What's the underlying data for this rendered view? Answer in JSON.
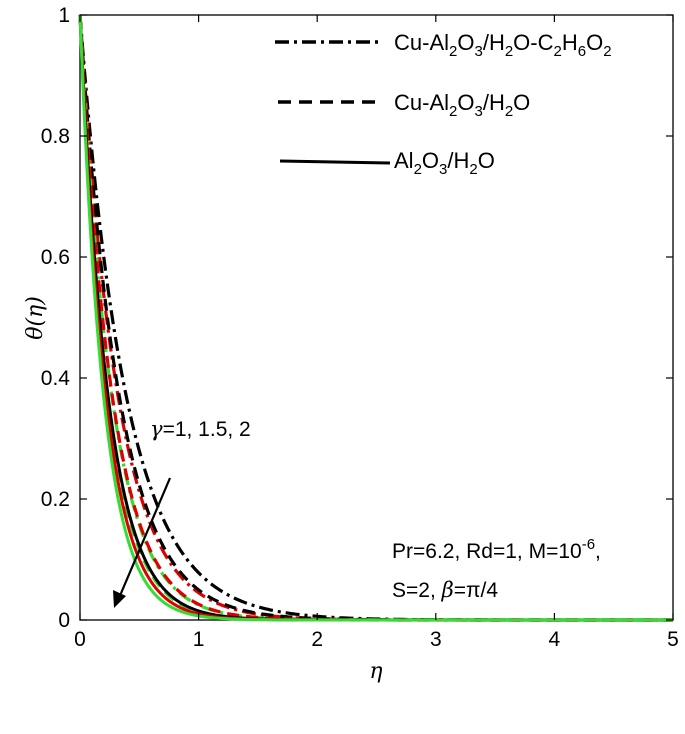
{
  "chart_data": {
    "type": "line",
    "xlabel": "η",
    "ylabel": "θ(η)",
    "xlim": [
      0,
      5
    ],
    "ylim": [
      0,
      1
    ],
    "xticks": [
      "0",
      "1",
      "2",
      "3",
      "4",
      "5"
    ],
    "yticks": [
      "0",
      "0.2",
      "0.4",
      "0.6",
      "0.8",
      "1"
    ],
    "grid": false,
    "legend_position": "top-right",
    "legend": [
      {
        "name": "Cu-Al2O3/H2O-C2H6O2",
        "style": "dash-dot",
        "color": "#000000"
      },
      {
        "name": "Cu-Al2O3/H2O",
        "style": "dashed",
        "color": "#000000"
      },
      {
        "name": "Al2O3/H2O",
        "style": "solid",
        "color": "#000000"
      }
    ],
    "annotation_gamma": {
      "greek": "γ",
      "values": "=1, 1.5, 2"
    },
    "annotation_params": {
      "line1": "Pr=6.2, Rd=1, M=10",
      "line1_exp": "-6",
      "line1_tail": ",",
      "line2_prefix": "S=2, ",
      "line2_greek": "β",
      "line2_suffix": "=π/4"
    },
    "series": [
      {
        "fluid": "Cu-Al2O3/H2O-C2H6O2",
        "gamma": 1,
        "color": "#000000",
        "style": "dash-dot",
        "decay": 2.55,
        "x": [
          0,
          0.25,
          0.5,
          0.75,
          1,
          1.5,
          2,
          3,
          4,
          5
        ],
        "y": [
          1,
          0.529,
          0.279,
          0.148,
          0.078,
          0.022,
          0.006,
          0.0005,
          0,
          0
        ]
      },
      {
        "fluid": "Cu-Al2O3/H2O-C2H6O2",
        "gamma": 1.5,
        "color": "#dc0000",
        "style": "dash-dot",
        "decay": 3.1,
        "x": [
          0,
          0.25,
          0.5,
          0.75,
          1,
          1.5,
          2,
          3,
          4,
          5
        ],
        "y": [
          1,
          0.461,
          0.212,
          0.098,
          0.045,
          0.01,
          0.002,
          0.0001,
          0,
          0
        ]
      },
      {
        "fluid": "Cu-Al2O3/H2O-C2H6O2",
        "gamma": 2,
        "color": "#33dd33",
        "style": "dash-dot",
        "decay": 3.7,
        "x": [
          0,
          0.25,
          0.5,
          0.75,
          1,
          1.5,
          2,
          3,
          4,
          5
        ],
        "y": [
          1,
          0.397,
          0.157,
          0.062,
          0.025,
          0.004,
          0.0006,
          0,
          0,
          0
        ]
      },
      {
        "fluid": "Cu-Al2O3/H2O",
        "gamma": 1,
        "color": "#000000",
        "style": "dashed",
        "decay": 3.0,
        "x": [
          0,
          0.25,
          0.5,
          0.75,
          1,
          1.5,
          2,
          3,
          4,
          5
        ],
        "y": [
          1,
          0.472,
          0.223,
          0.105,
          0.05,
          0.011,
          0.002,
          0.0001,
          0,
          0
        ]
      },
      {
        "fluid": "Cu-Al2O3/H2O",
        "gamma": 1.5,
        "color": "#dc0000",
        "style": "dashed",
        "decay": 3.65,
        "x": [
          0,
          0.25,
          0.5,
          0.75,
          1,
          1.5,
          2,
          3,
          4,
          5
        ],
        "y": [
          1,
          0.401,
          0.161,
          0.065,
          0.026,
          0.004,
          0.0007,
          0,
          0,
          0
        ]
      },
      {
        "fluid": "Cu-Al2O3/H2O",
        "gamma": 2,
        "color": "#33dd33",
        "style": "dashed",
        "decay": 4.3,
        "x": [
          0,
          0.25,
          0.5,
          0.75,
          1,
          1.5,
          2,
          3,
          4,
          5
        ],
        "y": [
          1,
          0.341,
          0.116,
          0.04,
          0.014,
          0.002,
          0.0002,
          0,
          0,
          0
        ]
      },
      {
        "fluid": "Al2O3/H2O",
        "gamma": 1,
        "color": "#000000",
        "style": "solid",
        "decay": 4.2,
        "x": [
          0,
          0.25,
          0.5,
          0.75,
          1,
          1.5,
          2,
          3,
          4,
          5
        ],
        "y": [
          1,
          0.35,
          0.122,
          0.043,
          0.015,
          0.002,
          0.0002,
          0,
          0,
          0
        ]
      },
      {
        "fluid": "Al2O3/H2O",
        "gamma": 1.5,
        "color": "#dc0000",
        "style": "solid",
        "decay": 4.6,
        "x": [
          0,
          0.25,
          0.5,
          0.75,
          1,
          1.5,
          2,
          3,
          4,
          5
        ],
        "y": [
          1,
          0.317,
          0.1,
          0.032,
          0.01,
          0.001,
          0.0001,
          0,
          0,
          0
        ]
      },
      {
        "fluid": "Al2O3/H2O",
        "gamma": 2,
        "color": "#33dd33",
        "style": "solid",
        "decay": 5.0,
        "x": [
          0,
          0.25,
          0.5,
          0.75,
          1,
          1.5,
          2,
          3,
          4,
          5
        ],
        "y": [
          1,
          0.287,
          0.082,
          0.024,
          0.007,
          0.0006,
          0,
          0,
          0,
          0
        ]
      }
    ]
  }
}
